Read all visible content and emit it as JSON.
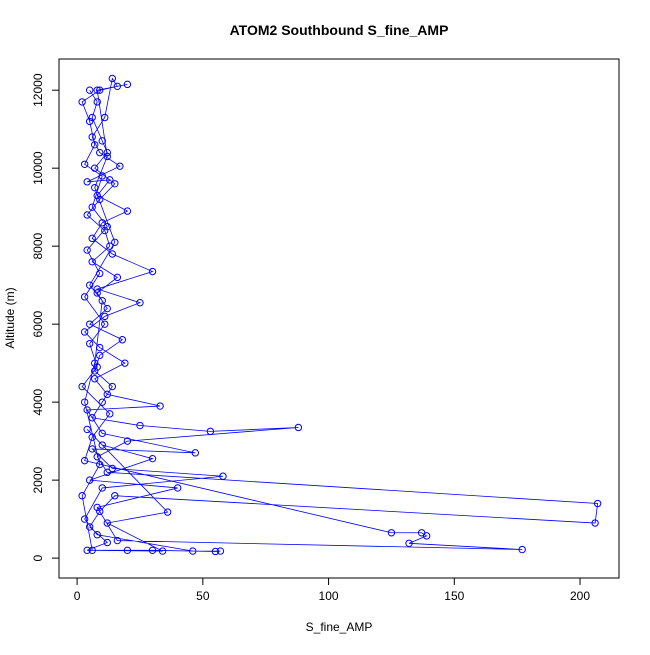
{
  "chart_data": {
    "type": "line",
    "title": "ATOM2 Southbound S_fine_AMP",
    "xlabel": "S_fine_AMP",
    "ylabel": "Altitude (m)",
    "color": "#0000ff",
    "markers": true,
    "xlim": [
      -7.2,
      215.5
    ],
    "ylim": [
      -510,
      12800
    ],
    "xticks": [
      0,
      50,
      100,
      150,
      200
    ],
    "yticks": [
      0,
      2000,
      4000,
      6000,
      8000,
      10000,
      12000
    ],
    "x": [
      5,
      8,
      6,
      10,
      12,
      7,
      15,
      9,
      4,
      11,
      13,
      6,
      16,
      8,
      12,
      5,
      18,
      9,
      7,
      14,
      10,
      6,
      25,
      53,
      88,
      20,
      8,
      12,
      207,
      206,
      15,
      9,
      5,
      12,
      4,
      20,
      30,
      55,
      57,
      46,
      8,
      3,
      10,
      58,
      14,
      6,
      47,
      10,
      4,
      33,
      12,
      7,
      19,
      9,
      3,
      11,
      25,
      8,
      30,
      14,
      6,
      10,
      20,
      8,
      13,
      4,
      17,
      9,
      6,
      11,
      14,
      16,
      9,
      2,
      5,
      7,
      3,
      10,
      6,
      12,
      4,
      9,
      3,
      11,
      5,
      8,
      2,
      13,
      6,
      3,
      125,
      137,
      139,
      132,
      177,
      16,
      8,
      40,
      5,
      30,
      10,
      4,
      36,
      12,
      34,
      6,
      2,
      9,
      3,
      7,
      10,
      5,
      15,
      7,
      12,
      8,
      20
    ],
    "values": [
      12000,
      11700,
      11300,
      10700,
      10400,
      10000,
      9600,
      9200,
      8800,
      8400,
      8000,
      7600,
      7200,
      6800,
      6400,
      6000,
      5600,
      5200,
      4800,
      4400,
      4000,
      3600,
      3400,
      3250,
      3350,
      3000,
      2600,
      2200,
      1400,
      900,
      1600,
      1200,
      800,
      400,
      200,
      200,
      200,
      170,
      180,
      180,
      600,
      1000,
      1800,
      2100,
      2300,
      2800,
      2700,
      3200,
      3800,
      3900,
      4200,
      4600,
      5000,
      5400,
      5800,
      6200,
      6550,
      6900,
      7350,
      7800,
      8200,
      8600,
      8900,
      9300,
      9700,
      9650,
      10050,
      10400,
      10800,
      11300,
      12300,
      12100,
      12000,
      11700,
      11200,
      10600,
      10100,
      9800,
      9000,
      8500,
      7900,
      7300,
      6700,
      6000,
      5500,
      4900,
      4400,
      3700,
      3100,
      2500,
      650,
      650,
      570,
      380,
      220,
      450,
      1300,
      1800,
      2000,
      2550,
      2900,
      3300,
      1180,
      900,
      180,
      200,
      1600,
      2400,
      4000,
      5000,
      6600,
      7000,
      8100,
      9500,
      10300,
      12000,
      12150
    ]
  }
}
